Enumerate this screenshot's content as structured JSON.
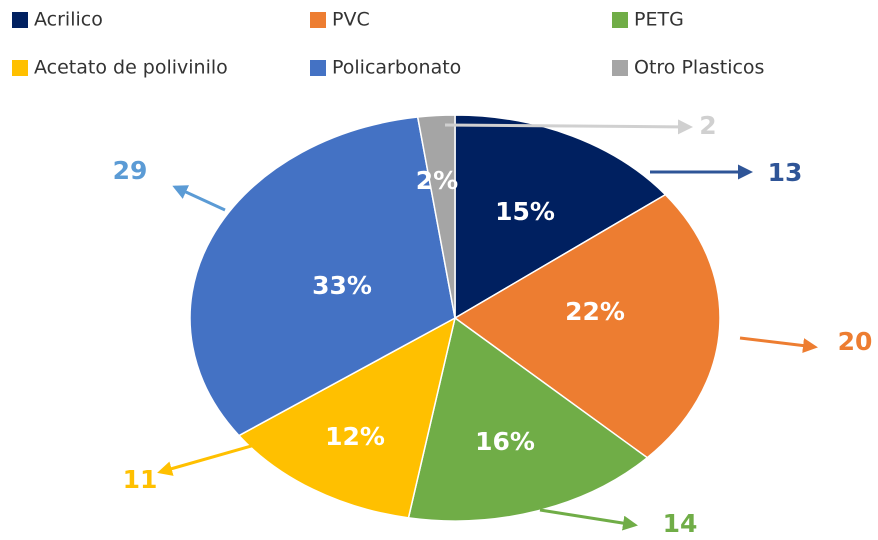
{
  "chart_data": {
    "type": "pie",
    "categories": [
      "Acrilico",
      "PVC",
      "PETG",
      "Acetato de polivinilo",
      "Policarbonato",
      "Otro Plasticos"
    ],
    "values": [
      13,
      20,
      14,
      11,
      29,
      2
    ],
    "percent_labels": [
      "15%",
      "22%",
      "16%",
      "12%",
      "33%",
      "2%"
    ],
    "colors": [
      "#002060",
      "#ed7d31",
      "#70ad47",
      "#ffc000",
      "#4472c4",
      "#a5a5a5"
    ],
    "legend": "top"
  }
}
